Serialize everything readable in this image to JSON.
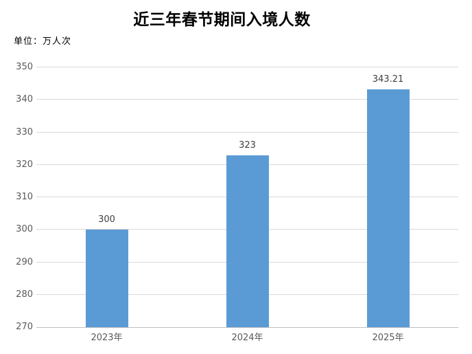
{
  "chart_data": {
    "type": "bar",
    "title": "近三年春节期间入境人数",
    "unit_label": "单位：万人次",
    "categories": [
      "2023年",
      "2024年",
      "2025年"
    ],
    "values": [
      300,
      323,
      343.21
    ],
    "value_labels": [
      "300",
      "323",
      "343.21"
    ],
    "xlabel": "",
    "ylabel": "",
    "ylim": [
      270,
      350
    ],
    "ytick_step": 10,
    "grid": true,
    "legend_position": "none",
    "colors": {
      "bar": "#5B9BD5",
      "gridline": "#D9D9D9",
      "axis_line": "#BFBFBF",
      "tick_label": "#595959",
      "value_label": "#404040",
      "title": "#000000",
      "background": "#FFFFFF"
    }
  }
}
